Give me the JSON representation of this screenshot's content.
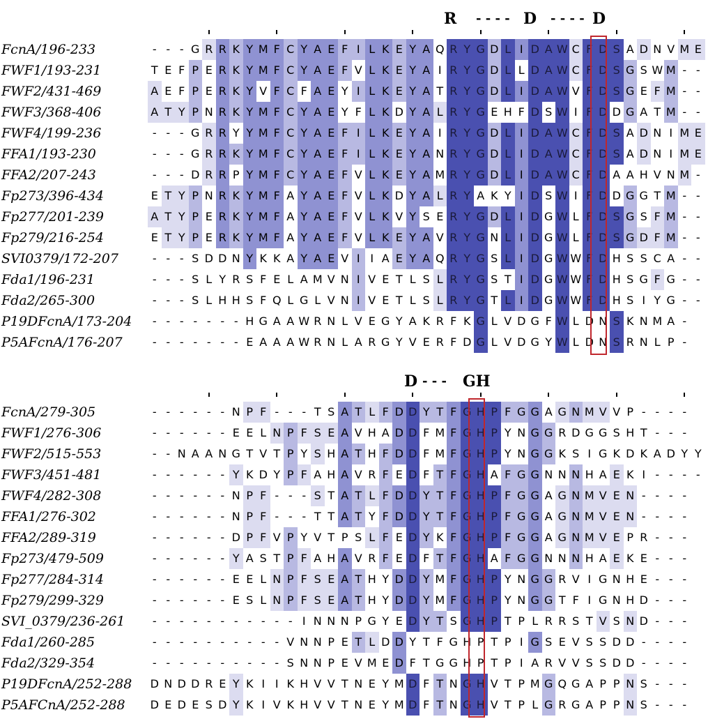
{
  "colors": {
    "shade": [
      "#ffffff",
      "#dcdcf0",
      "#b8b9e2",
      "#8f92d2",
      "#4a50b0"
    ],
    "highlight_box": "#c0272d"
  },
  "blocks": [
    {
      "motif": [
        "R",
        "- - - -",
        "D",
        "- - - -",
        "D"
      ],
      "rows": [
        {
          "label": "FcnA/196-233",
          "seq": "---GRRKYMFCYAEFILKEYAQRYGDLIDAWCFDSADNVME"
        },
        {
          "label": "FWF1/193-231",
          "seq": "TEFPERKYMFCYAEFVLKEYAIRYGDLLDAWCFDSGSWM--"
        },
        {
          "label": "FWF2/431-469",
          "seq": "AEFPERKYVFCFAEYILKEYATRYGDLIDAWVFDSGEFM--"
        },
        {
          "label": "FWF3/368-406",
          "seq": "ATYPNRKYMFCYAEYFLKDYALRYGEHFDSWIFDDGATM--"
        },
        {
          "label": "FWF4/199-236",
          "seq": "---GRRYYMFCYAEFILKEYAIRYGDLIDAWCFDSADNIME"
        },
        {
          "label": "FFA1/193-230",
          "seq": "---GRRKYMFCYAEFILKEYANRYGDLIDAWCFDSADNIME"
        },
        {
          "label": "FFA2/207-243",
          "seq": "---DRRPYMFCYAEFVLKEYAMRYGDLIDAWCFDAAHVNM-"
        },
        {
          "label": "Fp273/396-434",
          "seq": "ETYPNRKYMFAYAEFVLKDYALRYAKYIDSWIFDDGGTM--"
        },
        {
          "label": "Fp277/201-239",
          "seq": "ATYPERKYMFAYAEFVLKVYSERYGDLIDGWLFDSGSFM--"
        },
        {
          "label": "Fp279/216-254",
          "seq": "ETYPERKYMFAYAEFVLKEYAVRYGNLIDGWLFDSGDFM--"
        },
        {
          "label": "SVI0379/172-207",
          "seq": "---SDDNYKKAYAEVIIAEYAQRYGSLIDGWWFDHSSCA--"
        },
        {
          "label": "Fda1/196-231",
          "seq": "---SLYRSFELAMVNIVETLSLRYGSTIDGWWFDHSGFG--"
        },
        {
          "label": "Fda2/265-300",
          "seq": "---SLHHSFQLGLVNIVETLSLRYGTLIDGWWFDHSIYG--"
        },
        {
          "label": "P19DFcnA/173-204",
          "seq": "-------HGAAWRNLVEGYAKRFKGLVDGFWLDNSKNMA-"
        },
        {
          "label": "P5AFcnA/176-207",
          "seq": "-------EAAAWRNLARGYVERFDGLVDGYWLDNSRNLP-"
        }
      ]
    },
    {
      "motif": [
        "D",
        "- - -",
        "GH"
      ],
      "rows": [
        {
          "label": "FcnA/279-305",
          "seq": "------NPF---TSATLFDDYTFGHPFGGAGNMVVP----"
        },
        {
          "label": "FWF1/276-306",
          "seq": "------EELNPFSEAVHADDFMFGHPYNGGRDGGSHT---"
        },
        {
          "label": "FWF2/515-553",
          "seq": "--NAANGTVTPYSHATHFDDFMFGHPYNGGKSIGKDKADYY"
        },
        {
          "label": "FWF3/451-481",
          "seq": "------YKDYPFAHAVRFEDFTFGHAFGGNNNHAEKI----"
        },
        {
          "label": "FWF4/282-308",
          "seq": "------NPF---STATLFDDYTFGHPFGGAGNMVEN----"
        },
        {
          "label": "FFA1/276-302",
          "seq": "------NPF---TTATYFDDYTFGHPFGGAGNMVEN----"
        },
        {
          "label": "FFA2/289-319",
          "seq": "------DPFVPYVTPSLFEDYKFGHPFGGAGNMVEPR---"
        },
        {
          "label": "Fp273/479-509",
          "seq": "------YASTPFAHAVRFEDFTFGHAFGGNNNHAEKE---"
        },
        {
          "label": "Fp277/284-314",
          "seq": "------EELNPFSEATHYDDYMFGHPYNGGRVIGNHE---"
        },
        {
          "label": "Fp279/299-329",
          "seq": "------ESLNPFSEATHYDDYMFGHPYNGGTFIGNHD---"
        },
        {
          "label": "SVI_0379/236-261",
          "seq": "-----------INNNPGYEDYTSGHPTPLRRSTVSND---"
        },
        {
          "label": "Fda1/260-285",
          "seq": "----------VNNPETLDDYTFGHPTPIGSEVSSDD----"
        },
        {
          "label": "Fda2/329-354",
          "seq": "----------SNNPEVMEDFTGGHPTPIARVVSSDD----"
        },
        {
          "label": "P19DFcnA/252-288",
          "seq": "DNDDREYKIIKHVVTNEYMDFTNGHVTPMGQGAPPNS---"
        },
        {
          "label": "P5AFCnA/252-288",
          "seq": "DEDESDYKIVKHVVTNEYMDFTNGHVTPLGRGAPPNS---"
        }
      ]
    }
  ]
}
